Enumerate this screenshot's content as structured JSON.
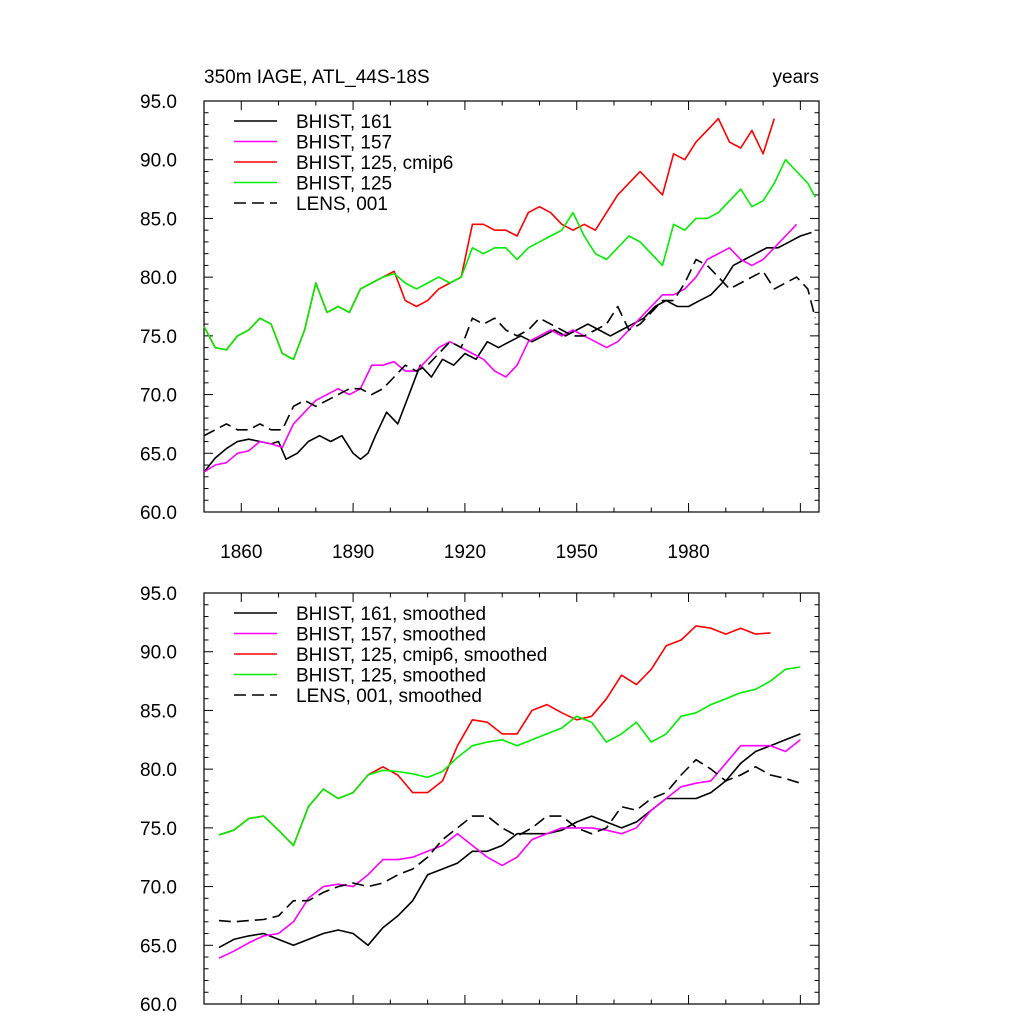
{
  "chart_data": [
    {
      "type": "line",
      "title": "350m IAGE, ATL_44S-18S",
      "title_right": "years",
      "ylim": [
        60,
        95
      ],
      "xlim": [
        1850,
        2015
      ],
      "yticks": [
        "60.0",
        "65.0",
        "70.0",
        "75.0",
        "80.0",
        "85.0",
        "90.0",
        "95.0"
      ],
      "xticks": [
        "1860",
        "1890",
        "1920",
        "1950",
        "1980"
      ],
      "legend_position": "top-left",
      "series": [
        {
          "name": "BHIST, 161",
          "color": "#000000",
          "dash": "solid",
          "x": [
            1850,
            1853,
            1856,
            1859,
            1862,
            1865,
            1868,
            1870,
            1872,
            1875,
            1878,
            1881,
            1884,
            1887,
            1890,
            1892,
            1894,
            1896,
            1899,
            1902,
            1905,
            1908,
            1911,
            1914,
            1917,
            1920,
            1923,
            1926,
            1929,
            1932,
            1935,
            1938,
            1941,
            1944,
            1947,
            1950,
            1953,
            1956,
            1959,
            1962,
            1965,
            1968,
            1971,
            1974,
            1977,
            1980,
            1983,
            1986,
            1989,
            1992,
            1995,
            1998,
            2001,
            2004,
            2007,
            2010,
            2013
          ],
          "y": [
            63.4,
            64.6,
            65.4,
            66.0,
            66.2,
            66.0,
            65.8,
            66.0,
            64.5,
            65.0,
            66.0,
            66.5,
            66.0,
            66.5,
            65.0,
            64.5,
            65.0,
            66.5,
            68.5,
            67.5,
            70.0,
            72.5,
            71.5,
            73.0,
            72.5,
            73.5,
            73.0,
            74.5,
            74.0,
            74.5,
            75.0,
            74.5,
            75.0,
            75.5,
            75.0,
            75.5,
            76.0,
            75.5,
            75.0,
            75.5,
            76.0,
            76.5,
            77.5,
            78.0,
            77.5,
            77.5,
            78.0,
            78.5,
            79.5,
            81.0,
            81.5,
            82.0,
            82.5,
            82.5,
            83.0,
            83.5,
            83.8
          ]
        },
        {
          "name": "BHIST, 157",
          "color": "#ff00ff",
          "dash": "solid",
          "x": [
            1850,
            1853,
            1856,
            1859,
            1862,
            1865,
            1868,
            1871,
            1874,
            1877,
            1880,
            1883,
            1886,
            1889,
            1892,
            1895,
            1898,
            1901,
            1904,
            1907,
            1910,
            1913,
            1916,
            1919,
            1922,
            1925,
            1928,
            1931,
            1934,
            1937,
            1940,
            1943,
            1946,
            1949,
            1952,
            1955,
            1958,
            1961,
            1964,
            1967,
            1970,
            1973,
            1976,
            1979,
            1982,
            1985,
            1988,
            1991,
            1994,
            1997,
            2000,
            2003,
            2006,
            2009
          ],
          "y": [
            63.4,
            64.0,
            64.2,
            65.0,
            65.2,
            66.0,
            65.8,
            65.5,
            67.5,
            68.5,
            69.5,
            70.0,
            70.5,
            70.0,
            70.5,
            72.5,
            72.5,
            72.8,
            72.0,
            72.0,
            73.0,
            74.0,
            74.5,
            74.0,
            73.5,
            73.0,
            72.0,
            71.5,
            72.5,
            74.5,
            75.0,
            75.5,
            75.0,
            75.5,
            75.0,
            74.5,
            74.0,
            74.5,
            75.5,
            76.5,
            77.5,
            78.5,
            78.5,
            79.0,
            80.0,
            81.5,
            82.0,
            82.5,
            81.5,
            81.0,
            81.5,
            82.5,
            83.5,
            84.5
          ]
        },
        {
          "name": "BHIST, 125, cmip6",
          "color": "#ff0000",
          "dash": "solid",
          "x": [
            1850,
            1853,
            1856,
            1859,
            1862,
            1865,
            1868,
            1871,
            1874,
            1877,
            1880,
            1883,
            1886,
            1889,
            1892,
            1895,
            1898,
            1901,
            1904,
            1907,
            1910,
            1913,
            1916,
            1919,
            1922,
            1925,
            1928,
            1931,
            1934,
            1937,
            1940,
            1943,
            1946,
            1949,
            1952,
            1955,
            1958,
            1961,
            1964,
            1967,
            1970,
            1973,
            1976,
            1979,
            1982,
            1985,
            1988,
            1991,
            1994,
            1997,
            2000,
            2003
          ],
          "y": [
            75.8,
            74.0,
            73.8,
            75.0,
            75.5,
            76.5,
            76.0,
            73.5,
            73.0,
            75.5,
            79.5,
            77.0,
            77.5,
            77.0,
            79.0,
            79.5,
            80.0,
            80.5,
            78.0,
            77.5,
            78.0,
            79.0,
            79.5,
            80.0,
            84.5,
            84.5,
            84.0,
            84.0,
            83.5,
            85.5,
            86.0,
            85.5,
            84.5,
            84.0,
            84.5,
            84.0,
            85.5,
            87.0,
            88.0,
            89.0,
            88.0,
            87.0,
            90.5,
            90.0,
            91.5,
            92.5,
            93.5,
            91.5,
            91.0,
            92.5,
            90.5,
            93.5
          ]
        },
        {
          "name": "BHIST, 125",
          "color": "#00ee00",
          "dash": "solid",
          "x": [
            1850,
            1853,
            1856,
            1859,
            1862,
            1865,
            1868,
            1871,
            1874,
            1877,
            1880,
            1883,
            1886,
            1889,
            1892,
            1895,
            1898,
            1901,
            1904,
            1907,
            1910,
            1913,
            1916,
            1919,
            1922,
            1925,
            1928,
            1931,
            1934,
            1937,
            1940,
            1943,
            1946,
            1949,
            1952,
            1955,
            1958,
            1961,
            1964,
            1967,
            1970,
            1973,
            1976,
            1979,
            1982,
            1985,
            1988,
            1991,
            1994,
            1997,
            2000,
            2003,
            2006,
            2009,
            2012,
            2014
          ],
          "y": [
            75.8,
            74.0,
            73.8,
            75.0,
            75.5,
            76.5,
            76.0,
            73.5,
            73.0,
            75.5,
            79.5,
            77.0,
            77.5,
            77.0,
            79.0,
            79.5,
            80.0,
            80.3,
            79.5,
            79.0,
            79.5,
            80.0,
            79.5,
            80.0,
            82.5,
            82.0,
            82.5,
            82.5,
            81.5,
            82.5,
            83.0,
            83.5,
            84.0,
            85.5,
            83.5,
            82.0,
            81.5,
            82.5,
            83.5,
            83.0,
            82.0,
            81.0,
            84.5,
            84.0,
            85.0,
            85.0,
            85.5,
            86.5,
            87.5,
            86.0,
            86.5,
            88.0,
            90.0,
            89.0,
            88.0,
            86.8
          ]
        },
        {
          "name": "LENS, 001",
          "color": "#000000",
          "dash": "dashed",
          "x": [
            1850,
            1853,
            1856,
            1859,
            1862,
            1865,
            1868,
            1871,
            1874,
            1877,
            1880,
            1883,
            1886,
            1889,
            1892,
            1895,
            1898,
            1901,
            1904,
            1907,
            1910,
            1913,
            1916,
            1919,
            1922,
            1925,
            1928,
            1931,
            1934,
            1937,
            1940,
            1943,
            1946,
            1949,
            1952,
            1955,
            1958,
            1961,
            1964,
            1967,
            1970,
            1973,
            1976,
            1979,
            1982,
            1985,
            1988,
            1991,
            1994,
            1997,
            2000,
            2003,
            2006,
            2009,
            2012,
            2014
          ],
          "y": [
            66.5,
            67.0,
            67.5,
            67.0,
            67.0,
            67.5,
            67.0,
            67.0,
            69.0,
            69.5,
            69.0,
            69.5,
            70.0,
            70.5,
            70.5,
            70.0,
            70.5,
            71.5,
            72.5,
            72.0,
            72.5,
            73.5,
            74.5,
            74.0,
            76.5,
            76.0,
            76.5,
            75.5,
            75.0,
            75.5,
            76.5,
            76.0,
            75.5,
            75.0,
            75.0,
            75.5,
            76.0,
            77.5,
            75.5,
            76.0,
            77.0,
            78.0,
            78.0,
            79.5,
            81.5,
            81.0,
            80.0,
            79.0,
            79.5,
            80.0,
            80.5,
            79.0,
            79.5,
            80.0,
            79.0,
            76.5
          ]
        }
      ]
    },
    {
      "type": "line",
      "ylim": [
        60,
        95
      ],
      "xlim": [
        1850,
        2015
      ],
      "yticks": [
        "60.0",
        "65.0",
        "70.0",
        "75.0",
        "80.0",
        "85.0",
        "90.0",
        "95.0"
      ],
      "legend_position": "top-left",
      "series": [
        {
          "name": "BHIST, 161, smoothed",
          "color": "#000000",
          "dash": "solid",
          "x": [
            1854,
            1858,
            1862,
            1866,
            1870,
            1874,
            1878,
            1882,
            1886,
            1890,
            1894,
            1898,
            1902,
            1906,
            1910,
            1914,
            1918,
            1922,
            1926,
            1930,
            1934,
            1938,
            1942,
            1946,
            1950,
            1954,
            1958,
            1962,
            1966,
            1970,
            1974,
            1978,
            1982,
            1986,
            1990,
            1994,
            1998,
            2002,
            2006,
            2010
          ],
          "y": [
            64.8,
            65.5,
            65.8,
            66.0,
            65.5,
            65.0,
            65.5,
            66.0,
            66.3,
            66.0,
            65.0,
            66.5,
            67.5,
            68.8,
            71.0,
            71.5,
            72.0,
            73.0,
            73.0,
            73.5,
            74.5,
            74.5,
            74.5,
            74.8,
            75.5,
            76.0,
            75.5,
            75.0,
            75.5,
            76.5,
            77.5,
            77.5,
            77.5,
            78.0,
            79.0,
            80.5,
            81.5,
            82.0,
            82.5,
            83.0
          ]
        },
        {
          "name": "BHIST, 157, smoothed",
          "color": "#ff00ff",
          "dash": "solid",
          "x": [
            1854,
            1858,
            1862,
            1866,
            1870,
            1874,
            1878,
            1882,
            1886,
            1890,
            1894,
            1898,
            1902,
            1906,
            1910,
            1914,
            1918,
            1922,
            1926,
            1930,
            1934,
            1938,
            1942,
            1946,
            1950,
            1954,
            1958,
            1962,
            1966,
            1970,
            1974,
            1978,
            1982,
            1986,
            1990,
            1994,
            1998,
            2002,
            2006,
            2010
          ],
          "y": [
            63.9,
            64.5,
            65.2,
            65.8,
            66.0,
            67.0,
            69.0,
            70.0,
            70.2,
            70.0,
            71.0,
            72.3,
            72.3,
            72.5,
            73.0,
            73.5,
            74.5,
            73.5,
            72.5,
            71.8,
            72.5,
            74.0,
            74.5,
            75.0,
            75.0,
            75.0,
            74.8,
            74.5,
            75.0,
            76.5,
            77.5,
            78.5,
            78.8,
            79.0,
            80.5,
            82.0,
            82.0,
            82.0,
            81.5,
            82.5
          ]
        },
        {
          "name": "BHIST, 125, cmip6, smoothed",
          "color": "#ff0000",
          "dash": "solid",
          "x": [
            1854,
            1858,
            1862,
            1866,
            1870,
            1874,
            1878,
            1882,
            1886,
            1890,
            1894,
            1898,
            1902,
            1906,
            1910,
            1914,
            1918,
            1922,
            1926,
            1930,
            1934,
            1938,
            1942,
            1946,
            1950,
            1954,
            1958,
            1962,
            1966,
            1970,
            1974,
            1978,
            1982,
            1986,
            1990,
            1994,
            1998,
            2002
          ],
          "y": [
            74.4,
            74.8,
            75.8,
            76.0,
            74.8,
            73.5,
            76.8,
            78.3,
            77.5,
            78.0,
            79.5,
            80.2,
            79.5,
            78.0,
            78.0,
            79.0,
            82.0,
            84.2,
            84.0,
            83.0,
            83.0,
            85.0,
            85.5,
            84.8,
            84.2,
            84.5,
            86.0,
            88.0,
            87.2,
            88.5,
            90.5,
            91.0,
            92.2,
            92.0,
            91.5,
            92.0,
            91.5,
            91.6
          ]
        },
        {
          "name": "BHIST, 125, smoothed",
          "color": "#00ee00",
          "dash": "solid",
          "x": [
            1854,
            1858,
            1862,
            1866,
            1870,
            1874,
            1878,
            1882,
            1886,
            1890,
            1894,
            1898,
            1902,
            1906,
            1910,
            1914,
            1918,
            1922,
            1926,
            1930,
            1934,
            1938,
            1942,
            1946,
            1950,
            1954,
            1958,
            1962,
            1966,
            1970,
            1974,
            1978,
            1982,
            1986,
            1990,
            1994,
            1998,
            2002,
            2006,
            2010
          ],
          "y": [
            74.4,
            74.8,
            75.8,
            76.0,
            74.8,
            73.5,
            76.8,
            78.3,
            77.5,
            78.0,
            79.5,
            79.9,
            79.8,
            79.6,
            79.3,
            79.8,
            81.0,
            82.0,
            82.3,
            82.5,
            82.0,
            82.5,
            83.0,
            83.5,
            84.5,
            84.0,
            82.3,
            83.0,
            84.0,
            82.3,
            83.0,
            84.5,
            84.8,
            85.5,
            86.0,
            86.5,
            86.8,
            87.5,
            88.5,
            88.7
          ]
        },
        {
          "name": "LENS, 001, smoothed",
          "color": "#000000",
          "dash": "dashed",
          "x": [
            1854,
            1858,
            1862,
            1866,
            1870,
            1874,
            1878,
            1882,
            1886,
            1890,
            1894,
            1898,
            1902,
            1906,
            1910,
            1914,
            1918,
            1922,
            1926,
            1930,
            1934,
            1938,
            1942,
            1946,
            1950,
            1954,
            1958,
            1962,
            1966,
            1970,
            1974,
            1978,
            1982,
            1986,
            1990,
            1994,
            1998,
            2002,
            2006,
            2010
          ],
          "y": [
            67.1,
            67.0,
            67.1,
            67.2,
            67.5,
            68.8,
            68.8,
            69.5,
            70.0,
            70.3,
            70.0,
            70.3,
            71.0,
            71.5,
            72.5,
            74.0,
            75.0,
            76.0,
            76.0,
            75.0,
            74.3,
            75.0,
            76.0,
            76.0,
            75.0,
            74.5,
            75.0,
            76.8,
            76.5,
            77.5,
            78.0,
            79.5,
            80.8,
            80.0,
            79.0,
            79.5,
            80.2,
            79.5,
            79.2,
            78.8
          ]
        }
      ]
    }
  ]
}
